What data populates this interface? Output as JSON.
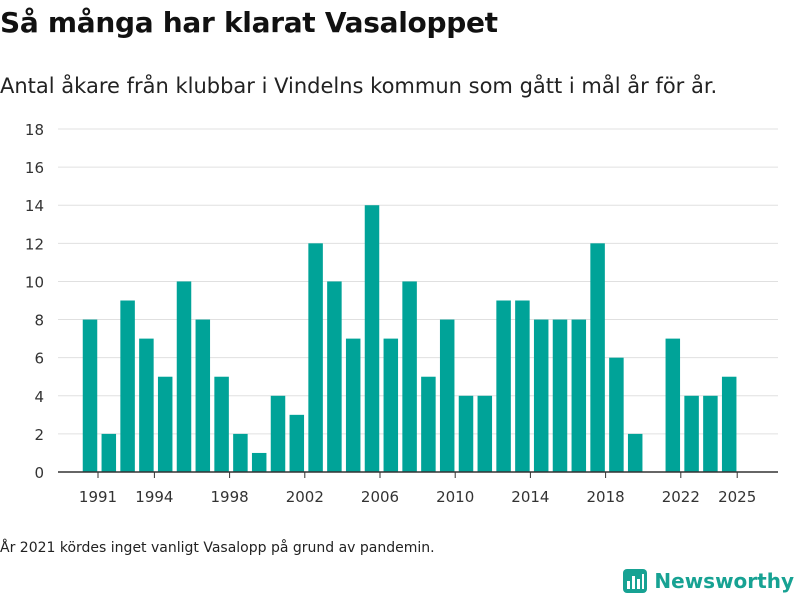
{
  "header": {
    "title": "Så många har klarat Vasaloppet",
    "subtitle": "Antal åkare från klubbar i Vindelns kommun som gått i mål år för år."
  },
  "footnote": "År 2021 kördes inget vanligt Vasalopp på grund av pandemin.",
  "brand": {
    "name": "Newsworthy",
    "icon": "newsworthy-chart-logo-icon",
    "color": "#17a293"
  },
  "chart_data": {
    "type": "bar",
    "title": "Så många har klarat Vasaloppet",
    "xlabel": "",
    "ylabel": "",
    "bar_color": "#00a398",
    "grid": true,
    "ylim": [
      0,
      18
    ],
    "y_ticks": [
      "0",
      "2",
      "4",
      "6",
      "8",
      "10",
      "12",
      "14",
      "16",
      "18"
    ],
    "x_ticks": [
      "1991",
      "1994",
      "1998",
      "2002",
      "2006",
      "2010",
      "2014",
      "2018",
      "2022",
      "2025"
    ],
    "categories": [
      1991,
      1992,
      1993,
      1994,
      1995,
      1996,
      1997,
      1998,
      1999,
      2000,
      2001,
      2002,
      2003,
      2004,
      2005,
      2006,
      2007,
      2008,
      2009,
      2010,
      2011,
      2012,
      2013,
      2014,
      2015,
      2016,
      2017,
      2018,
      2019,
      2020,
      2021,
      2022,
      2023,
      2024,
      2025
    ],
    "values": [
      8,
      2,
      9,
      7,
      5,
      10,
      8,
      5,
      2,
      1,
      4,
      3,
      12,
      10,
      7,
      14,
      7,
      10,
      5,
      8,
      4,
      4,
      9,
      9,
      8,
      8,
      8,
      12,
      6,
      2,
      0,
      7,
      4,
      4,
      5
    ]
  }
}
